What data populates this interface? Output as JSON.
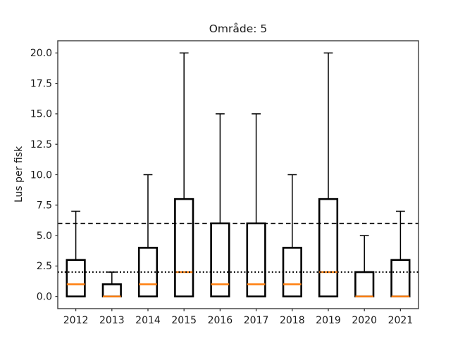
{
  "chart_data": {
    "type": "box",
    "title": "Område: 5",
    "xlabel": "",
    "ylabel": "Lus per fisk",
    "categories": [
      "2012",
      "2013",
      "2014",
      "2015",
      "2016",
      "2017",
      "2018",
      "2019",
      "2020",
      "2021"
    ],
    "boxes": [
      {
        "year": "2012",
        "whisker_low": 0,
        "q1": 0,
        "median": 1,
        "q3": 3,
        "whisker_high": 7
      },
      {
        "year": "2013",
        "whisker_low": 0,
        "q1": 0,
        "median": 0,
        "q3": 1,
        "whisker_high": 2
      },
      {
        "year": "2014",
        "whisker_low": 0,
        "q1": 0,
        "median": 1,
        "q3": 4,
        "whisker_high": 10
      },
      {
        "year": "2015",
        "whisker_low": 0,
        "q1": 0,
        "median": 2,
        "q3": 8,
        "whisker_high": 20
      },
      {
        "year": "2016",
        "whisker_low": 0,
        "q1": 0,
        "median": 1,
        "q3": 6,
        "whisker_high": 15
      },
      {
        "year": "2017",
        "whisker_low": 0,
        "q1": 0,
        "median": 1,
        "q3": 6,
        "whisker_high": 15
      },
      {
        "year": "2018",
        "whisker_low": 0,
        "q1": 0,
        "median": 1,
        "q3": 4,
        "whisker_high": 10
      },
      {
        "year": "2019",
        "whisker_low": 0,
        "q1": 0,
        "median": 2,
        "q3": 8,
        "whisker_high": 20
      },
      {
        "year": "2020",
        "whisker_low": 0,
        "q1": 0,
        "median": 0,
        "q3": 2,
        "whisker_high": 5
      },
      {
        "year": "2021",
        "whisker_low": 0,
        "q1": 0,
        "median": 0,
        "q3": 3,
        "whisker_high": 7
      }
    ],
    "yticks": [
      {
        "value": 0,
        "label": "0.0"
      },
      {
        "value": 2.5,
        "label": "2.5"
      },
      {
        "value": 5,
        "label": "5.0"
      },
      {
        "value": 7.5,
        "label": "7.5"
      },
      {
        "value": 10,
        "label": "10.0"
      },
      {
        "value": 12.5,
        "label": "12.5"
      },
      {
        "value": 15,
        "label": "15.0"
      },
      {
        "value": 17.5,
        "label": "17.5"
      },
      {
        "value": 20,
        "label": "20.0"
      }
    ],
    "ylim": [
      -1,
      21
    ],
    "grid": false,
    "legend": null,
    "reference_lines": [
      {
        "y": 6,
        "style": "dashed",
        "color": "#000000"
      },
      {
        "y": 2,
        "style": "dotted",
        "color": "#000000"
      }
    ],
    "colors": {
      "box": "#000000",
      "whisker": "#000000",
      "cap": "#000000",
      "median": "#ff7f0e",
      "spine": "#3c3c3c",
      "tick": "#262626",
      "background": "#ffffff"
    }
  }
}
